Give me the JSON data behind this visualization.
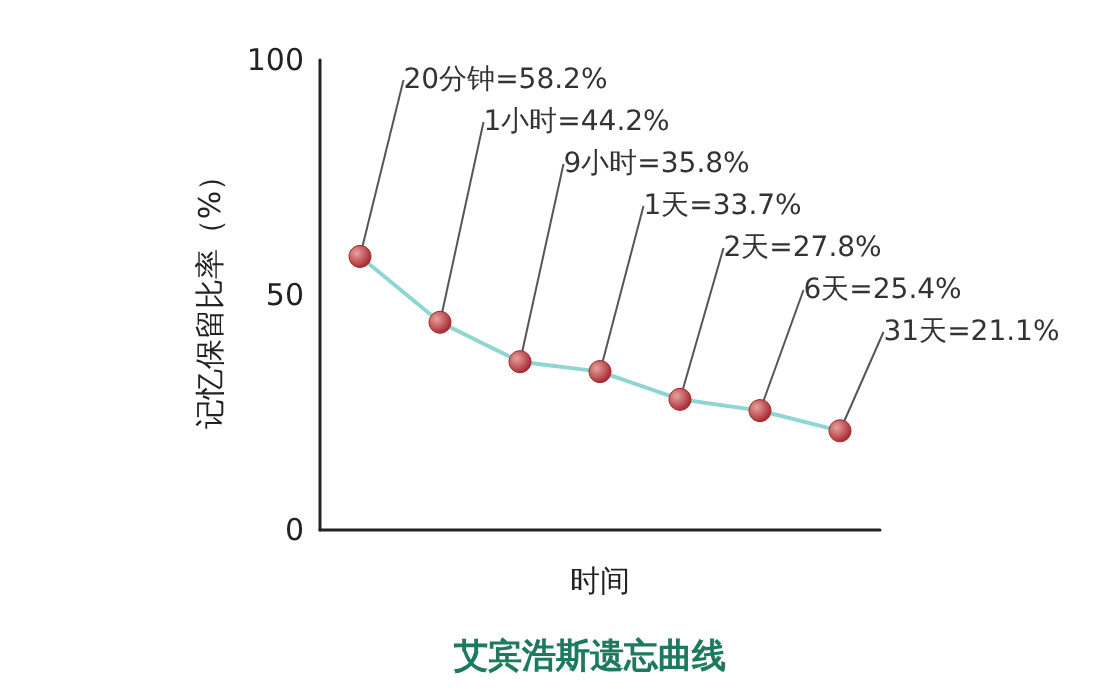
{
  "chart_data": {
    "type": "line",
    "title": "艾宾浩斯遗忘曲线",
    "xlabel": "时间",
    "ylabel": "记忆保留比率（%）",
    "categories": [
      null,
      null,
      null,
      null,
      null,
      null,
      null
    ],
    "series": [
      {
        "color": "#8fd6d2",
        "colors": [
          "#a3262c",
          "#a3262c",
          "#a3262c",
          "#a3262c",
          "#a3262c",
          "#a3262c",
          "#a3262c"
        ],
        "values": [
          58.2,
          44.2,
          35.8,
          33.7,
          27.8,
          25.4,
          21.1
        ],
        "value_labels": [
          "20分钟=58.2%",
          "1小时=44.2%",
          "9小时=35.8%",
          "1天=33.7%",
          "2天=27.8%",
          "6天=25.4%",
          "31天=21.1%"
        ]
      }
    ],
    "ylim": [
      0,
      100
    ],
    "yticks": [
      0,
      50,
      100
    ],
    "grid": false,
    "marker": "circle",
    "line_style": "solid"
  }
}
